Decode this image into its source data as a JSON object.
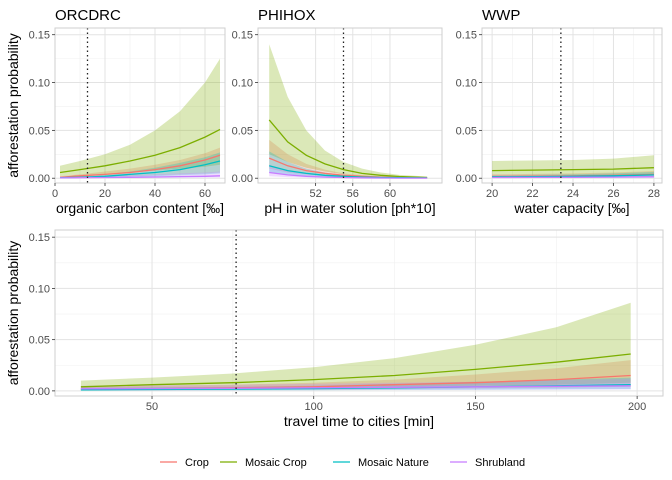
{
  "chart_data": [
    {
      "type": "line",
      "title": "ORCDRC",
      "xlabel": "organic carbon content [‰]",
      "ylabel": "afforestation probability",
      "xlim": [
        0,
        68
      ],
      "ylim": [
        -0.005,
        0.157
      ],
      "xticks": [
        0,
        20,
        40,
        60
      ],
      "yticks": [
        0.0,
        0.05,
        0.1,
        0.15
      ],
      "ytick_labels": [
        "0.00",
        "0.05",
        "0.10",
        "0.15"
      ],
      "vline": 13,
      "x": [
        2,
        10,
        20,
        30,
        40,
        50,
        60,
        66
      ],
      "series": [
        {
          "name": "Crop",
          "color": "#F8766D",
          "values": [
            0.001,
            0.0025,
            0.004,
            0.006,
            0.009,
            0.013,
            0.019,
            0.024
          ],
          "lower": [
            0.0003,
            0.001,
            0.0015,
            0.002,
            0.003,
            0.004,
            0.005,
            0.006
          ],
          "upper": [
            0.002,
            0.004,
            0.007,
            0.01,
            0.014,
            0.019,
            0.026,
            0.032
          ]
        },
        {
          "name": "Mosaic Crop",
          "color": "#7CAE00",
          "values": [
            0.006,
            0.009,
            0.013,
            0.018,
            0.024,
            0.032,
            0.043,
            0.051
          ],
          "lower": [
            0.002,
            0.003,
            0.004,
            0.006,
            0.008,
            0.01,
            0.012,
            0.014
          ],
          "upper": [
            0.013,
            0.018,
            0.025,
            0.035,
            0.05,
            0.07,
            0.1,
            0.125
          ]
        },
        {
          "name": "Mosaic Nature",
          "color": "#00BFC4",
          "values": [
            0.0005,
            0.001,
            0.002,
            0.004,
            0.006,
            0.009,
            0.014,
            0.018
          ],
          "lower": [
            0.0002,
            0.0005,
            0.001,
            0.0015,
            0.002,
            0.003,
            0.004,
            0.005
          ],
          "upper": [
            0.0015,
            0.0025,
            0.004,
            0.007,
            0.011,
            0.016,
            0.022,
            0.027
          ]
        },
        {
          "name": "Shrubland",
          "color": "#C77CFF",
          "values": [
            0.0003,
            0.0005,
            0.0008,
            0.001,
            0.0013,
            0.0017,
            0.002,
            0.0025
          ],
          "lower": [
            0.0001,
            0.0002,
            0.0003,
            0.0004,
            0.0005,
            0.0006,
            0.0007,
            0.0008
          ],
          "upper": [
            0.001,
            0.0015,
            0.002,
            0.003,
            0.004,
            0.005,
            0.006,
            0.007
          ]
        }
      ]
    },
    {
      "type": "line",
      "title": "PHIHOX",
      "xlabel": "pH in water solution [ph*10]",
      "ylabel": "",
      "xlim": [
        45.8,
        65.6
      ],
      "ylim": [
        -0.005,
        0.157
      ],
      "xticks": [
        52,
        56,
        60
      ],
      "yticks": [
        0.0,
        0.05,
        0.1,
        0.15
      ],
      "ytick_labels": [
        "0.00",
        "0.05",
        "0.10",
        "0.15"
      ],
      "vline": 55,
      "x": [
        47,
        49,
        51,
        53,
        55,
        57,
        59,
        61,
        64
      ],
      "series": [
        {
          "name": "Crop",
          "color": "#F8766D",
          "values": [
            0.021,
            0.013,
            0.008,
            0.005,
            0.003,
            0.002,
            0.0012,
            0.0008,
            0.0004
          ],
          "lower": [
            0.01,
            0.006,
            0.004,
            0.002,
            0.0012,
            0.0007,
            0.0004,
            0.0002,
            0.0001
          ],
          "upper": [
            0.04,
            0.025,
            0.015,
            0.009,
            0.005,
            0.003,
            0.002,
            0.0015,
            0.001
          ]
        },
        {
          "name": "Mosaic Crop",
          "color": "#7CAE00",
          "values": [
            0.061,
            0.038,
            0.024,
            0.015,
            0.009,
            0.005,
            0.003,
            0.0018,
            0.0008
          ],
          "lower": [
            0.025,
            0.017,
            0.011,
            0.007,
            0.004,
            0.002,
            0.0012,
            0.0007,
            0.0003
          ],
          "upper": [
            0.14,
            0.085,
            0.05,
            0.029,
            0.017,
            0.01,
            0.006,
            0.0035,
            0.0018
          ]
        },
        {
          "name": "Mosaic Nature",
          "color": "#00BFC4",
          "values": [
            0.013,
            0.008,
            0.005,
            0.003,
            0.002,
            0.0012,
            0.0008,
            0.0005,
            0.0003
          ],
          "lower": [
            0.006,
            0.004,
            0.002,
            0.0012,
            0.0007,
            0.0004,
            0.0002,
            0.0001,
            0.0001
          ],
          "upper": [
            0.028,
            0.017,
            0.01,
            0.006,
            0.0035,
            0.002,
            0.0012,
            0.0008,
            0.0005
          ]
        },
        {
          "name": "Shrubland",
          "color": "#C77CFF",
          "values": [
            0.006,
            0.0035,
            0.002,
            0.0012,
            0.0007,
            0.0004,
            0.0002,
            0.0001,
            0.0001
          ],
          "lower": [
            0.002,
            0.0012,
            0.0007,
            0.0004,
            0.0002,
            0.0001,
            0.0,
            0.0,
            0.0
          ],
          "upper": [
            0.014,
            0.008,
            0.005,
            0.003,
            0.0016,
            0.001,
            0.0006,
            0.0004,
            0.0002
          ]
        }
      ]
    },
    {
      "type": "line",
      "title": "WWP",
      "xlabel": "water capacity [‰]",
      "ylabel": "",
      "xlim": [
        19.5,
        28.4
      ],
      "ylim": [
        -0.005,
        0.157
      ],
      "xticks": [
        20,
        22,
        24,
        26,
        28
      ],
      "yticks": [
        0.0,
        0.05,
        0.1,
        0.15
      ],
      "ytick_labels": [
        "0.00",
        "0.05",
        "0.10",
        "0.15"
      ],
      "vline": 23.4,
      "x": [
        20,
        22,
        24,
        26,
        28
      ],
      "series": [
        {
          "name": "Crop",
          "color": "#F8766D",
          "values": [
            0.002,
            0.0022,
            0.0025,
            0.003,
            0.004
          ],
          "lower": [
            0.0008,
            0.0009,
            0.001,
            0.0012,
            0.0014
          ],
          "upper": [
            0.004,
            0.0045,
            0.005,
            0.006,
            0.0075
          ]
        },
        {
          "name": "Mosaic Crop",
          "color": "#7CAE00",
          "values": [
            0.008,
            0.0085,
            0.009,
            0.0095,
            0.011
          ],
          "lower": [
            0.003,
            0.0032,
            0.0034,
            0.0036,
            0.004
          ],
          "upper": [
            0.018,
            0.0185,
            0.019,
            0.0205,
            0.024
          ]
        },
        {
          "name": "Mosaic Nature",
          "color": "#00BFC4",
          "values": [
            0.0015,
            0.0017,
            0.002,
            0.0025,
            0.0035
          ],
          "lower": [
            0.0006,
            0.0007,
            0.0008,
            0.001,
            0.0012
          ],
          "upper": [
            0.003,
            0.0035,
            0.004,
            0.005,
            0.0065
          ]
        },
        {
          "name": "Shrubland",
          "color": "#C77CFF",
          "values": [
            0.0008,
            0.0009,
            0.001,
            0.0012,
            0.0015
          ],
          "lower": [
            0.0002,
            0.0003,
            0.0003,
            0.0004,
            0.0005
          ],
          "upper": [
            0.0015,
            0.0017,
            0.002,
            0.0025,
            0.003
          ]
        }
      ]
    },
    {
      "type": "line",
      "title": "",
      "xlabel": "travel time to cities [min]",
      "ylabel": "afforestation probability",
      "xlim": [
        20,
        208
      ],
      "ylim": [
        -0.005,
        0.157
      ],
      "xticks": [
        50,
        100,
        150,
        200
      ],
      "yticks": [
        0.0,
        0.05,
        0.1,
        0.15
      ],
      "ytick_labels": [
        "0.00",
        "0.05",
        "0.10",
        "0.15"
      ],
      "vline": 76,
      "x": [
        28,
        50,
        75,
        100,
        125,
        150,
        175,
        198
      ],
      "series": [
        {
          "name": "Crop",
          "color": "#F8766D",
          "values": [
            0.0015,
            0.002,
            0.003,
            0.004,
            0.006,
            0.008,
            0.011,
            0.015
          ],
          "lower": [
            0.0005,
            0.0007,
            0.001,
            0.0013,
            0.0018,
            0.0024,
            0.003,
            0.004
          ],
          "upper": [
            0.004,
            0.005,
            0.006,
            0.008,
            0.011,
            0.016,
            0.022,
            0.03
          ]
        },
        {
          "name": "Mosaic Crop",
          "color": "#7CAE00",
          "values": [
            0.004,
            0.006,
            0.008,
            0.011,
            0.015,
            0.021,
            0.028,
            0.036
          ],
          "lower": [
            0.001,
            0.0015,
            0.002,
            0.003,
            0.004,
            0.005,
            0.006,
            0.008
          ],
          "upper": [
            0.01,
            0.013,
            0.017,
            0.023,
            0.032,
            0.045,
            0.062,
            0.086
          ]
        },
        {
          "name": "Mosaic Nature",
          "color": "#00BFC4",
          "values": [
            0.001,
            0.0013,
            0.0017,
            0.0022,
            0.003,
            0.004,
            0.005,
            0.006
          ],
          "lower": [
            0.0003,
            0.0004,
            0.0005,
            0.0007,
            0.0009,
            0.0011,
            0.0014,
            0.0017
          ],
          "upper": [
            0.003,
            0.0035,
            0.004,
            0.005,
            0.007,
            0.009,
            0.011,
            0.013
          ]
        },
        {
          "name": "Shrubland",
          "color": "#C77CFF",
          "values": [
            0.002,
            0.0022,
            0.0025,
            0.003,
            0.0035,
            0.004,
            0.0045,
            0.005
          ],
          "lower": [
            0.0005,
            0.0006,
            0.0007,
            0.0008,
            0.001,
            0.0011,
            0.0012,
            0.0014
          ],
          "upper": [
            0.005,
            0.0055,
            0.006,
            0.007,
            0.008,
            0.009,
            0.0105,
            0.012
          ]
        }
      ]
    }
  ],
  "legend": {
    "position": "bottom",
    "items": [
      {
        "name": "Crop",
        "color": "#F8766D"
      },
      {
        "name": "Mosaic Crop",
        "color": "#7CAE00"
      },
      {
        "name": "Mosaic Nature",
        "color": "#00BFC4"
      },
      {
        "name": "Shrubland",
        "color": "#C77CFF"
      }
    ]
  }
}
